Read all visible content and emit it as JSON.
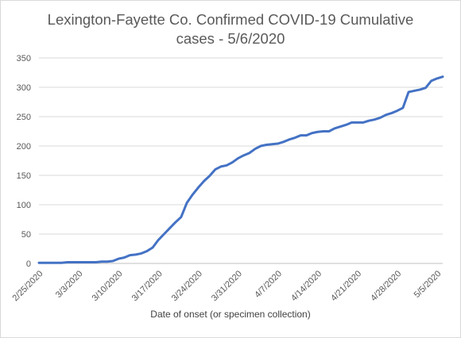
{
  "chart_data": {
    "type": "line",
    "title_lines": [
      "Lexington-Fayette Co. Confirmed COVID-19 Cumulative",
      "cases - 5/6/2020"
    ],
    "xlabel": "Date of onset (or specimen collection)",
    "ylabel": "",
    "ylim": [
      0,
      350
    ],
    "yticks": [
      0,
      50,
      100,
      150,
      200,
      250,
      300,
      350
    ],
    "xtick_labels": [
      "2/25/2020",
      "3/3/2020",
      "3/10/2020",
      "3/17/2020",
      "3/24/2020",
      "3/31/2020",
      "4/7/2020",
      "4/14/2020",
      "4/21/2020",
      "4/28/2020",
      "5/5/2020"
    ],
    "grid": true,
    "legend": "none",
    "line_color": "#4472c4",
    "x_start": "2/25/2020",
    "x": [
      "2/25/2020",
      "2/26/2020",
      "2/27/2020",
      "2/28/2020",
      "2/29/2020",
      "3/1/2020",
      "3/2/2020",
      "3/3/2020",
      "3/4/2020",
      "3/5/2020",
      "3/6/2020",
      "3/7/2020",
      "3/8/2020",
      "3/9/2020",
      "3/10/2020",
      "3/11/2020",
      "3/12/2020",
      "3/13/2020",
      "3/14/2020",
      "3/15/2020",
      "3/16/2020",
      "3/17/2020",
      "3/18/2020",
      "3/19/2020",
      "3/20/2020",
      "3/21/2020",
      "3/22/2020",
      "3/23/2020",
      "3/24/2020",
      "3/25/2020",
      "3/26/2020",
      "3/27/2020",
      "3/28/2020",
      "3/29/2020",
      "3/30/2020",
      "3/31/2020",
      "4/1/2020",
      "4/2/2020",
      "4/3/2020",
      "4/4/2020",
      "4/5/2020",
      "4/6/2020",
      "4/7/2020",
      "4/8/2020",
      "4/9/2020",
      "4/10/2020",
      "4/11/2020",
      "4/12/2020",
      "4/13/2020",
      "4/14/2020",
      "4/15/2020",
      "4/16/2020",
      "4/17/2020",
      "4/18/2020",
      "4/19/2020",
      "4/20/2020",
      "4/21/2020",
      "4/22/2020",
      "4/23/2020",
      "4/24/2020",
      "4/25/2020",
      "4/26/2020",
      "4/27/2020",
      "4/28/2020",
      "4/29/2020",
      "4/30/2020",
      "5/1/2020",
      "5/2/2020",
      "5/3/2020",
      "5/4/2020",
      "5/5/2020",
      "5/6/2020"
    ],
    "series": [
      {
        "values": [
          1,
          1,
          1,
          1,
          1,
          2,
          2,
          2,
          2,
          2,
          2,
          3,
          3,
          4,
          8,
          10,
          14,
          15,
          17,
          21,
          27,
          40,
          50,
          60,
          70,
          79,
          103,
          117,
          129,
          140,
          149,
          160,
          165,
          167,
          172,
          179,
          184,
          188,
          195,
          200,
          202,
          203,
          204,
          207,
          211,
          214,
          218,
          218,
          222,
          224,
          225,
          225,
          230,
          233,
          236,
          240,
          240,
          240,
          243,
          245,
          248,
          253,
          256,
          260,
          265,
          292,
          294,
          296,
          299,
          311,
          315,
          318
        ]
      }
    ]
  }
}
